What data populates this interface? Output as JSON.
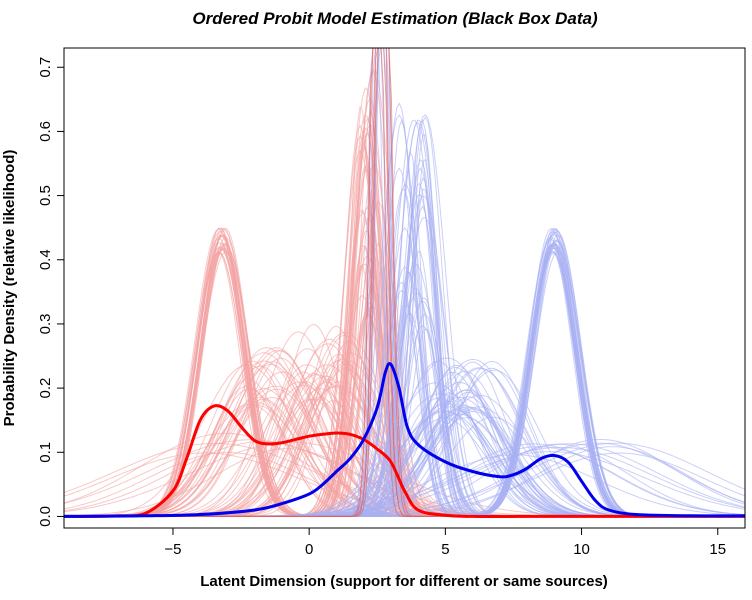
{
  "chart_data": {
    "type": "line",
    "title": "Ordered Probit Model Estimation (Black Box Data)",
    "xlabel": "Latent Dimension (support for different or same sources)",
    "ylabel": "Probability Density (relative likelihood)",
    "xlim": [
      -9,
      16
    ],
    "ylim": [
      -0.018,
      0.73
    ],
    "xticks": [
      {
        "value": -5,
        "label": "−5"
      },
      {
        "value": 0,
        "label": "0"
      },
      {
        "value": 5,
        "label": "5"
      },
      {
        "value": 10,
        "label": "10"
      },
      {
        "value": 15,
        "label": "15"
      }
    ],
    "yticks": [
      {
        "value": 0.0,
        "label": "0.0"
      },
      {
        "value": 0.1,
        "label": "0.1"
      },
      {
        "value": 0.2,
        "label": "0.2"
      },
      {
        "value": 0.3,
        "label": "0.3"
      },
      {
        "value": 0.4,
        "label": "0.4"
      },
      {
        "value": 0.5,
        "label": "0.5"
      },
      {
        "value": 0.6,
        "label": "0.6"
      },
      {
        "value": 0.7,
        "label": "0.7"
      }
    ],
    "grid": false,
    "legend": "none",
    "colors": {
      "red_thin": "#f4a3a3",
      "blue_thin": "#a8b0f4",
      "red_mean": "#ff0000",
      "blue_mean": "#0000ee"
    },
    "series": [
      {
        "color": "red",
        "style": "mean",
        "x": [
          -9,
          -8,
          -7,
          -6,
          -5,
          -4.5,
          -4,
          -3.5,
          -3,
          -2.5,
          -2,
          -1.5,
          -1,
          -0.5,
          0,
          0.5,
          1,
          1.5,
          2,
          2.5,
          3,
          3.5,
          4,
          5,
          6,
          8,
          10,
          12,
          14,
          16
        ],
        "y": [
          0.0,
          0.0,
          0.001,
          0.005,
          0.04,
          0.09,
          0.15,
          0.172,
          0.165,
          0.14,
          0.118,
          0.113,
          0.115,
          0.12,
          0.125,
          0.128,
          0.13,
          0.128,
          0.12,
          0.105,
          0.085,
          0.04,
          0.01,
          0.002,
          0.0,
          0.0,
          0.0,
          0.0,
          0.0,
          0.0
        ]
      },
      {
        "color": "blue",
        "style": "mean",
        "x": [
          -9,
          -6,
          -4,
          -2,
          -1,
          0,
          0.5,
          1,
          1.5,
          2,
          2.5,
          2.8,
          3,
          3.3,
          3.6,
          4,
          5,
          6,
          7,
          7.5,
          8,
          8.5,
          9,
          9.5,
          10,
          10.5,
          11,
          12,
          14,
          16
        ],
        "y": [
          0.0,
          0.001,
          0.003,
          0.01,
          0.02,
          0.035,
          0.05,
          0.07,
          0.09,
          0.12,
          0.17,
          0.225,
          0.237,
          0.2,
          0.14,
          0.112,
          0.085,
          0.07,
          0.062,
          0.065,
          0.075,
          0.09,
          0.095,
          0.085,
          0.055,
          0.025,
          0.01,
          0.003,
          0.001,
          0.001
        ]
      }
    ]
  }
}
